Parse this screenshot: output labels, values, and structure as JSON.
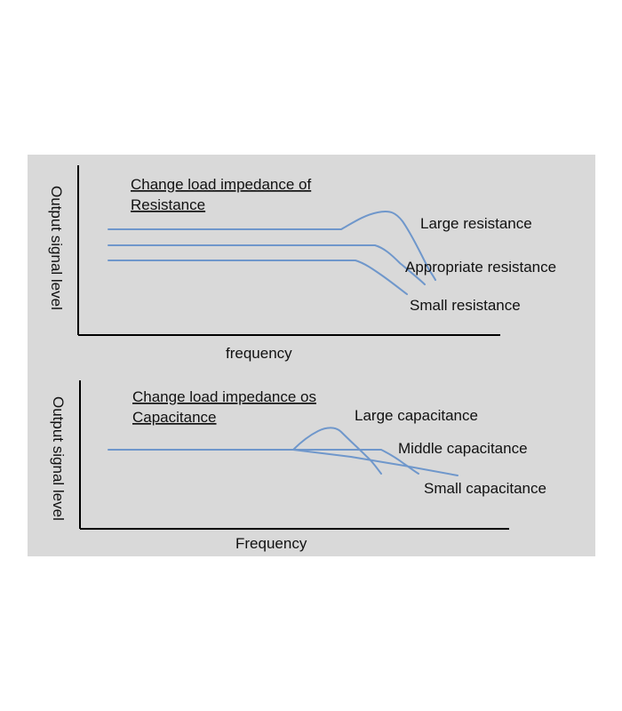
{
  "top_chart": {
    "title_line1": "Change load impedance of",
    "title_line2": "Resistance",
    "ylabel": "Output signal level",
    "xlabel": "frequency",
    "curves": {
      "large": "Large resistance",
      "appropriate": "Appropriate resistance",
      "small": "Small resistance"
    }
  },
  "bottom_chart": {
    "title_line1": "Change load impedance os",
    "title_line2": "Capacitance",
    "ylabel": "Output signal level",
    "xlabel": "Frequency",
    "curves": {
      "large": "Large capacitance",
      "middle": "Middle capacitance",
      "small": "Small capacitance"
    }
  },
  "colors": {
    "background": "#d9d9d9",
    "curve": "#6f97cb",
    "axis": "#000000"
  }
}
